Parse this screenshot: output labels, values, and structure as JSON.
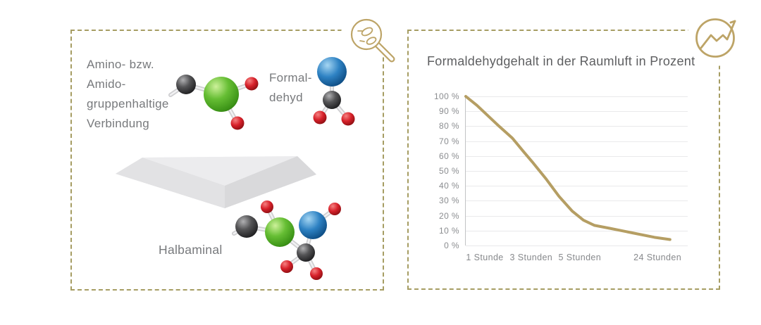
{
  "left_panel": {
    "reactant_lines": [
      "Amino- bzw.",
      "Amido-",
      "gruppenhaltige",
      "Verbindung"
    ],
    "formaldehyde_lines": [
      "Formal-",
      "dehyd"
    ],
    "product_label": "Halbaminal",
    "corner_icon": "magnifier-with-microbes-icon",
    "arrow": "down-arrow"
  },
  "right_panel": {
    "corner_icon": "trend-line-chart-icon"
  },
  "chart_data": {
    "type": "line",
    "title": "Formaldehydgehalt in der Raumluft in Prozent",
    "xlabel": "",
    "ylabel": "",
    "ylim": [
      0,
      100
    ],
    "grid": "horizontal",
    "legend": "none",
    "line_color": "#b59e63",
    "y_tick_labels": [
      "100 %",
      "90 %",
      "80 %",
      "70 %",
      "60 %",
      "50 %",
      "40 %",
      "30 %",
      "20 %",
      "10 %",
      "0 %"
    ],
    "x_tick_labels": [
      "1 Stunde",
      "3 Stunden",
      "5 Stunden",
      "24 Stunden"
    ],
    "x_tick_pos_pct": [
      8.9,
      29.8,
      51.7,
      86.7
    ],
    "start_value": 100,
    "values_at_ticks": [
      {
        "label": "1 Stunde",
        "value": 88
      },
      {
        "label": "3 Stunden",
        "value": 56
      },
      {
        "label": "5 Stunden",
        "value": 18
      },
      {
        "label": "24 Stunden",
        "value": 4
      }
    ],
    "curve_points_pct": [
      [
        0,
        100
      ],
      [
        5,
        94
      ],
      [
        10,
        87
      ],
      [
        15,
        80
      ],
      [
        21,
        72
      ],
      [
        26,
        63
      ],
      [
        30,
        56
      ],
      [
        36,
        45
      ],
      [
        42,
        33
      ],
      [
        48,
        23
      ],
      [
        53,
        17
      ],
      [
        58,
        13.5
      ],
      [
        65,
        11.5
      ],
      [
        75,
        8.5
      ],
      [
        85,
        5.5
      ],
      [
        92,
        4
      ]
    ]
  },
  "colors": {
    "panel_border": "#a69d63",
    "icon_gold": "#bda467",
    "chart_line": "#b59e63",
    "text_gray": "#77797c",
    "title_gray": "#5d5e60",
    "atom_green": "#5cb831",
    "atom_blue": "#1f76b8",
    "atom_red": "#d42127",
    "atom_black": "#3a3a3c"
  }
}
